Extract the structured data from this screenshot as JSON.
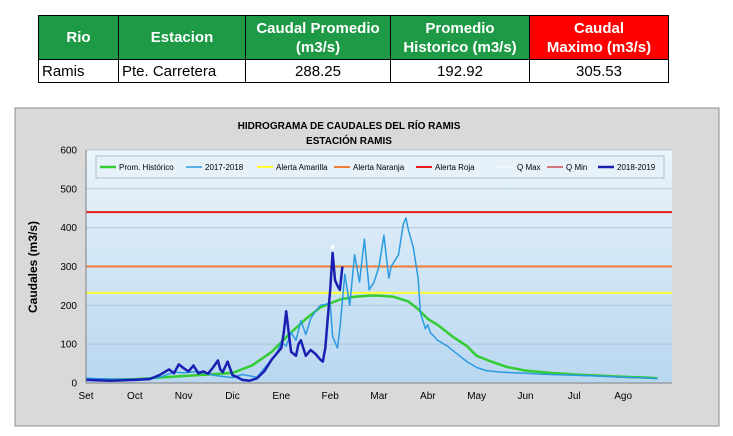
{
  "table": {
    "headers": {
      "rio": "Rio",
      "estacion": "Estacion",
      "promedio_l1": "Caudal Promedio",
      "promedio_l2": "(m3/s)",
      "historico_l1": "Promedio",
      "historico_l2": "Historico (m3/s)",
      "maximo_l1": "Caudal",
      "maximo_l2": "Maximo (m3/s)"
    },
    "row": {
      "rio": "Ramis",
      "estacion": "Pte. Carretera",
      "promedio": "288.25",
      "historico": "192.92",
      "maximo": "305.53"
    }
  },
  "chart_data": {
    "type": "line",
    "title": "HIDROGRAMA DE CAUDALES DEL RÍO RAMIS",
    "subtitle": "ESTACIÓN RAMIS",
    "ylabel": "Caudales (m3/s)",
    "xlabel": "",
    "ylim": [
      0,
      600
    ],
    "yticks": [
      "0",
      "100",
      "200",
      "300",
      "400",
      "500",
      "600"
    ],
    "months": [
      "Set",
      "Oct",
      "Nov",
      "Dic",
      "Ene",
      "Feb",
      "Mar",
      "Abr",
      "May",
      "Jun",
      "Jul",
      "Ago"
    ],
    "grid": true,
    "legend_position": "top",
    "colors": {
      "plot_bg_top": "#eaf4fb",
      "plot_bg_bottom": "#b9d7f0",
      "outer_bg": "#d9d9d9"
    },
    "thresholds": [
      {
        "name": "Alerta Amarilla",
        "value": 232,
        "color": "#ffff33"
      },
      {
        "name": "Alerta Naranja",
        "value": 300,
        "color": "#ed7d31"
      },
      {
        "name": "Alerta Roja",
        "value": 440,
        "color": "#e81c1c"
      }
    ],
    "series": [
      {
        "name": "Prom. Histórico",
        "color": "#33cc33",
        "width": 2.5,
        "points": [
          [
            0,
            10
          ],
          [
            0.5,
            9
          ],
          [
            1,
            10
          ],
          [
            1.5,
            14
          ],
          [
            2,
            18
          ],
          [
            2.5,
            22
          ],
          [
            3,
            26
          ],
          [
            3.4,
            45
          ],
          [
            3.8,
            80
          ],
          [
            4.2,
            130
          ],
          [
            4.5,
            165
          ],
          [
            4.8,
            195
          ],
          [
            5,
            205
          ],
          [
            5.2,
            215
          ],
          [
            5.5,
            222
          ],
          [
            5.8,
            225
          ],
          [
            6,
            225
          ],
          [
            6.3,
            222
          ],
          [
            6.6,
            210
          ],
          [
            6.8,
            190
          ],
          [
            7,
            165
          ],
          [
            7.2,
            150
          ],
          [
            7.5,
            120
          ],
          [
            7.8,
            95
          ],
          [
            8,
            70
          ],
          [
            8.3,
            55
          ],
          [
            8.6,
            42
          ],
          [
            9,
            32
          ],
          [
            9.5,
            26
          ],
          [
            10,
            22
          ],
          [
            10.5,
            19
          ],
          [
            11,
            16
          ],
          [
            11.5,
            14
          ],
          [
            11.7,
            12
          ]
        ]
      },
      {
        "name": "2017-2018",
        "color": "#2b9ae0",
        "width": 1.5,
        "points": [
          [
            0,
            12
          ],
          [
            0.5,
            10
          ],
          [
            1,
            10
          ],
          [
            1.5,
            14
          ],
          [
            1.8,
            28
          ],
          [
            2,
            26
          ],
          [
            2.3,
            30
          ],
          [
            2.6,
            20
          ],
          [
            3,
            14
          ],
          [
            3.2,
            22
          ],
          [
            3.5,
            15
          ],
          [
            3.7,
            45
          ],
          [
            3.9,
            75
          ],
          [
            4,
            105
          ],
          [
            4.1,
            95
          ],
          [
            4.2,
            130
          ],
          [
            4.3,
            110
          ],
          [
            4.4,
            160
          ],
          [
            4.5,
            125
          ],
          [
            4.6,
            165
          ],
          [
            4.7,
            185
          ],
          [
            4.8,
            200
          ],
          [
            5,
            205
          ],
          [
            5.05,
            120
          ],
          [
            5.15,
            90
          ],
          [
            5.2,
            140
          ],
          [
            5.3,
            280
          ],
          [
            5.4,
            200
          ],
          [
            5.5,
            330
          ],
          [
            5.6,
            260
          ],
          [
            5.7,
            370
          ],
          [
            5.8,
            240
          ],
          [
            5.9,
            260
          ],
          [
            6,
            300
          ],
          [
            6.1,
            380
          ],
          [
            6.2,
            270
          ],
          [
            6.25,
            300
          ],
          [
            6.4,
            330
          ],
          [
            6.5,
            410
          ],
          [
            6.55,
            425
          ],
          [
            6.6,
            395
          ],
          [
            6.7,
            350
          ],
          [
            6.8,
            270
          ],
          [
            6.85,
            180
          ],
          [
            6.95,
            140
          ],
          [
            7,
            150
          ],
          [
            7.05,
            130
          ],
          [
            7.2,
            110
          ],
          [
            7.4,
            95
          ],
          [
            7.6,
            75
          ],
          [
            7.8,
            55
          ],
          [
            8,
            40
          ],
          [
            8.2,
            32
          ],
          [
            8.5,
            28
          ],
          [
            9,
            25
          ],
          [
            9.5,
            22
          ],
          [
            10,
            20
          ],
          [
            10.5,
            18
          ],
          [
            11,
            15
          ],
          [
            11.5,
            13
          ],
          [
            11.7,
            11
          ]
        ]
      },
      {
        "name": "2018-2019",
        "color": "#1a1fb2",
        "width": 2.5,
        "points": [
          [
            0,
            8
          ],
          [
            0.5,
            6
          ],
          [
            1,
            8
          ],
          [
            1.3,
            10
          ],
          [
            1.5,
            20
          ],
          [
            1.7,
            35
          ],
          [
            1.8,
            25
          ],
          [
            1.9,
            48
          ],
          [
            2,
            38
          ],
          [
            2.1,
            30
          ],
          [
            2.2,
            45
          ],
          [
            2.3,
            25
          ],
          [
            2.4,
            30
          ],
          [
            2.5,
            24
          ],
          [
            2.6,
            40
          ],
          [
            2.7,
            58
          ],
          [
            2.75,
            35
          ],
          [
            2.8,
            28
          ],
          [
            2.9,
            55
          ],
          [
            3,
            20
          ],
          [
            3.1,
            15
          ],
          [
            3.2,
            8
          ],
          [
            3.35,
            6
          ],
          [
            3.5,
            12
          ],
          [
            3.65,
            30
          ],
          [
            3.8,
            60
          ],
          [
            4,
            90
          ],
          [
            4.05,
            130
          ],
          [
            4.1,
            185
          ],
          [
            4.15,
            130
          ],
          [
            4.2,
            80
          ],
          [
            4.3,
            70
          ],
          [
            4.35,
            100
          ],
          [
            4.4,
            110
          ],
          [
            4.45,
            90
          ],
          [
            4.5,
            70
          ],
          [
            4.6,
            85
          ],
          [
            4.7,
            75
          ],
          [
            4.8,
            60
          ],
          [
            4.85,
            55
          ],
          [
            4.9,
            90
          ],
          [
            4.95,
            165
          ],
          [
            5,
            240
          ],
          [
            5.05,
            335
          ],
          [
            5.1,
            265
          ],
          [
            5.15,
            250
          ],
          [
            5.2,
            240
          ],
          [
            5.25,
            300
          ]
        ]
      },
      {
        "name": "Q Max",
        "color": "#ffffff",
        "width": 1,
        "marker": true,
        "points": [
          [
            5.05,
            350
          ]
        ]
      },
      {
        "name": "Q Min",
        "color": "#c00000",
        "width": 1,
        "marker": true,
        "points": []
      }
    ]
  }
}
